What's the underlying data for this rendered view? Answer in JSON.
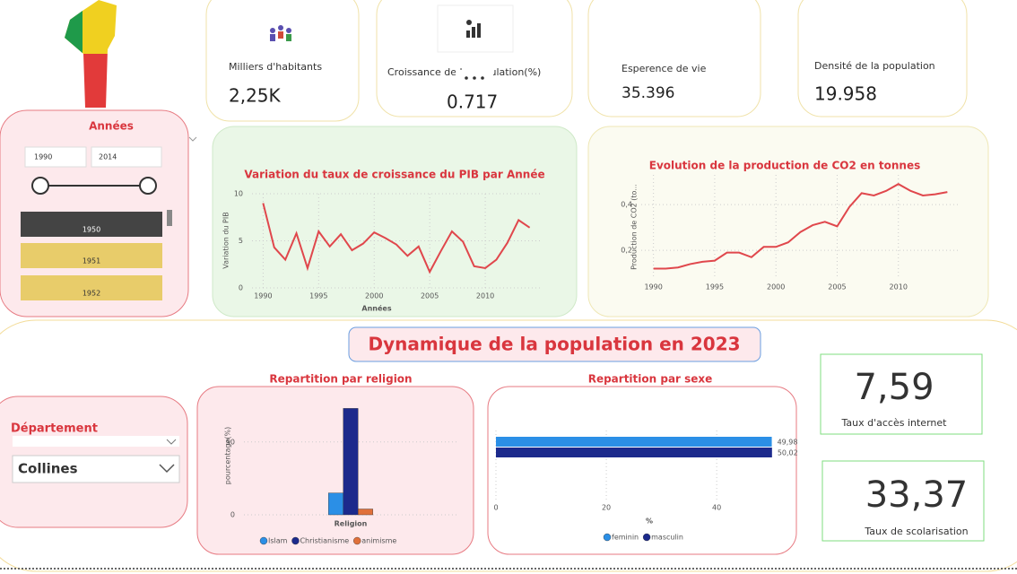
{
  "kpis": [
    {
      "label": "Milliers d'habitants",
      "value": "2,25K"
    },
    {
      "label": "Croissance de la population(%)",
      "value": "0.717"
    },
    {
      "label": "Esperence de vie",
      "value": "35.396"
    },
    {
      "label": "Densité de la population",
      "value": "19.958"
    }
  ],
  "year_slicer": {
    "title": "Années",
    "start": "1990",
    "end": "2014",
    "items": [
      "1950",
      "1951",
      "1952"
    ]
  },
  "section_title": "Dynamique de la population en 2023",
  "department_slicer": {
    "title": "Département",
    "value": "Collines"
  },
  "indicators": [
    {
      "value": "7,59",
      "label": "Taux d'accès internet"
    },
    {
      "value": "33,37",
      "label": "Taux de scolarisation"
    }
  ],
  "chart_data": [
    {
      "type": "line",
      "title": "Variation du taux de croissance du PIB par Année",
      "x_label": "Années",
      "y_label": "Variation du PIB",
      "color": "#e0474c",
      "x": [
        1990,
        1991,
        1992,
        1993,
        1994,
        1995,
        1996,
        1997,
        1998,
        1999,
        2000,
        2001,
        2002,
        2003,
        2004,
        2005,
        2006,
        2007,
        2008,
        2009,
        2010,
        2011,
        2012,
        2013,
        2014
      ],
      "values": [
        9,
        4.3,
        3,
        5.8,
        2.1,
        6,
        4.4,
        5.7,
        4,
        4.7,
        5.9,
        5.3,
        4.6,
        3.4,
        4.4,
        1.7,
        3.9,
        6,
        4.9,
        2.3,
        2.1,
        3,
        4.8,
        7.2,
        6.4
      ],
      "xlim": [
        1989,
        2015
      ],
      "xticks": [
        1990,
        1995,
        2000,
        2005,
        2010
      ],
      "ylim": [
        0,
        10
      ],
      "yticks": [
        0,
        5,
        10
      ],
      "grid": true
    },
    {
      "type": "line",
      "title": "Evolution de la production de CO2 en tonnes",
      "y_label": "Production de CO2 (to...",
      "color": "#e0474c",
      "x": [
        1990,
        1991,
        1992,
        1993,
        1994,
        1995,
        1996,
        1997,
        1998,
        1999,
        2000,
        2001,
        2002,
        2003,
        2004,
        2005,
        2006,
        2007,
        2008,
        2009,
        2010,
        2011,
        2012,
        2013,
        2014
      ],
      "values": [
        0.12,
        0.12,
        0.125,
        0.14,
        0.15,
        0.155,
        0.19,
        0.19,
        0.17,
        0.215,
        0.215,
        0.235,
        0.28,
        0.31,
        0.325,
        0.305,
        0.39,
        0.45,
        0.44,
        0.46,
        0.49,
        0.46,
        0.44,
        0.445,
        0.455
      ],
      "xlim": [
        1989,
        2015
      ],
      "xticks": [
        1990,
        1995,
        2000,
        2005,
        2010
      ],
      "ylim": [
        0.075,
        0.53
      ],
      "yticks": [
        {
          "value": 0.2,
          "label": "0,2"
        },
        {
          "value": 0.4,
          "label": "0,4"
        }
      ],
      "grid": true
    },
    {
      "type": "bar",
      "title": "Repartition par religion",
      "categories": [
        "Religion"
      ],
      "y_label": "pourcentage(%)",
      "series": [
        {
          "name": "Islam",
          "color": "#2b8fe6",
          "values": [
            15
          ]
        },
        {
          "name": "Christianisme",
          "color": "#1c2a8c",
          "values": [
            73
          ]
        },
        {
          "name": "animisme",
          "color": "#e0703a",
          "values": [
            4
          ]
        }
      ],
      "ylim": [
        0,
        80
      ],
      "yticks": [
        0,
        50
      ],
      "grid": true
    },
    {
      "type": "hbar",
      "title": "Repartition par sexe",
      "x_label": "%",
      "series": [
        {
          "name": "feminin",
          "color": "#2b8fe6",
          "values": [
            49.98
          ],
          "value_labels": [
            "49,98"
          ]
        },
        {
          "name": "masculin",
          "color": "#1c2a8c",
          "values": [
            50.02
          ],
          "value_labels": [
            "50,02"
          ]
        }
      ],
      "xlim": [
        0,
        52
      ],
      "xticks": [
        0,
        20,
        40
      ],
      "grid": true
    }
  ]
}
